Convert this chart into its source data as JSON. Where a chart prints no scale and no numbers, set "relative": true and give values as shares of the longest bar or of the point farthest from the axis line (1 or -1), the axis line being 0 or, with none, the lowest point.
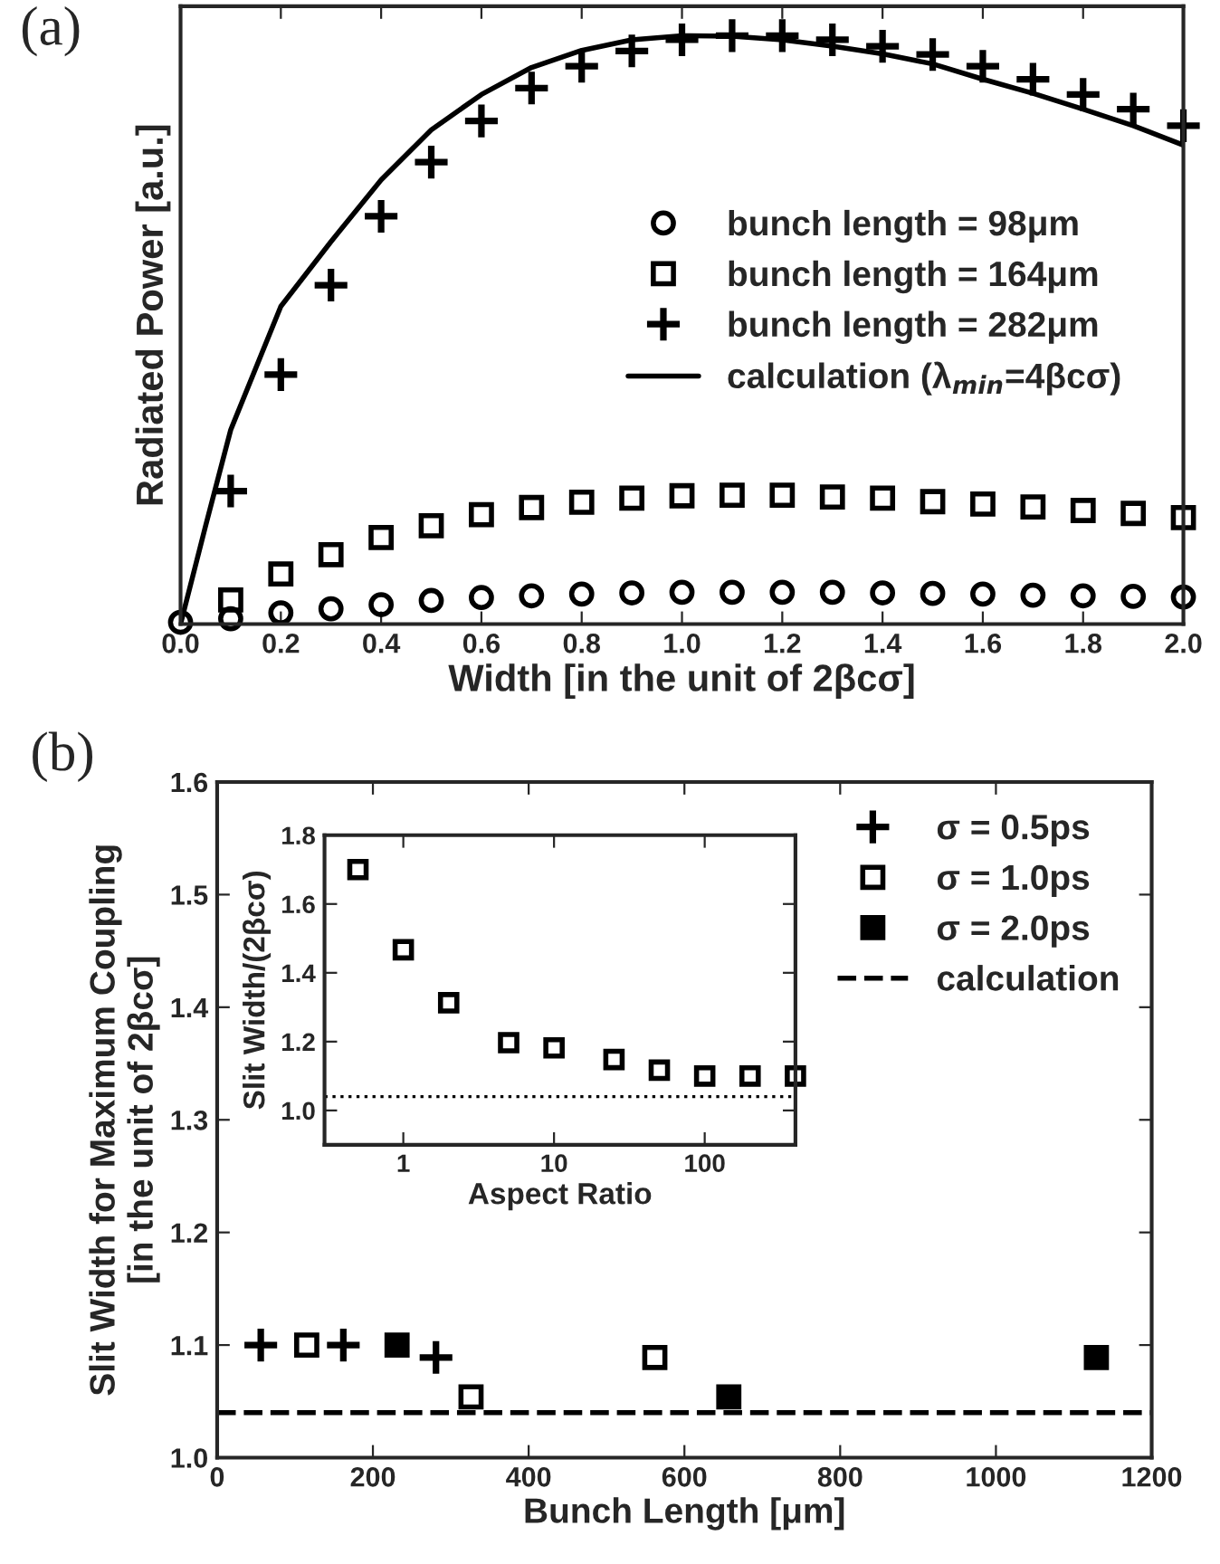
{
  "chart_data": [
    {
      "type": "scatter",
      "title": "(a)",
      "xlabel": "Width [in the unit of 2βcσ]",
      "ylabel": "Radiated Power [a.u.]",
      "relative": true,
      "xlim": [
        0.0,
        2.0
      ],
      "xticks": [
        {
          "value": 0,
          "label": "0.0"
        },
        0.2,
        0.4,
        0.6,
        0.8,
        {
          "value": 1,
          "label": "1.0"
        },
        1.2,
        1.4,
        1.6,
        1.8,
        {
          "value": 2,
          "label": "2.0"
        }
      ],
      "tick_labels": "x",
      "legend": "right",
      "grid": false,
      "series": [
        {
          "name": "bunch length = 98μm",
          "color": "#000000",
          "marker": "circle",
          "x": [
            0.0,
            0.1,
            0.2,
            0.3,
            0.4,
            0.5,
            0.6,
            0.7,
            0.8,
            0.9,
            1.0,
            1.1,
            1.2,
            1.3,
            1.4,
            1.5,
            1.6,
            1.7,
            1.8,
            1.9,
            2.0
          ],
          "values": [
            0.003,
            0.009,
            0.019,
            0.026,
            0.033,
            0.04,
            0.045,
            0.048,
            0.051,
            0.053,
            0.054,
            0.054,
            0.054,
            0.054,
            0.053,
            0.052,
            0.051,
            0.049,
            0.048,
            0.047,
            0.046
          ]
        },
        {
          "name": "bunch length = 164μm",
          "color": "#000000",
          "marker": "square",
          "x": [
            0.1,
            0.2,
            0.3,
            0.4,
            0.5,
            0.6,
            0.7,
            0.8,
            0.9,
            1.0,
            1.1,
            1.2,
            1.3,
            1.4,
            1.5,
            1.6,
            1.7,
            1.8,
            1.9,
            2.0
          ],
          "values": [
            0.041,
            0.085,
            0.118,
            0.147,
            0.167,
            0.186,
            0.198,
            0.207,
            0.214,
            0.218,
            0.219,
            0.219,
            0.216,
            0.214,
            0.208,
            0.204,
            0.199,
            0.193,
            0.188,
            0.181
          ]
        },
        {
          "name": "bunch length = 282μm",
          "color": "#000000",
          "marker": "cross",
          "x": [
            0.1,
            0.2,
            0.3,
            0.4,
            0.5,
            0.6,
            0.7,
            0.8,
            0.9,
            1.0,
            1.1,
            1.2,
            1.3,
            1.4,
            1.5,
            1.6,
            1.7,
            1.8,
            1.9,
            2.0
          ],
          "values": [
            0.226,
            0.424,
            0.576,
            0.693,
            0.785,
            0.855,
            0.911,
            0.948,
            0.974,
            0.993,
            1.0,
            1.0,
            0.993,
            0.982,
            0.968,
            0.948,
            0.926,
            0.9,
            0.875,
            0.847
          ]
        },
        {
          "name": "calculation (λ$_{min}$=4βcσ)",
          "type": "line",
          "color": "#000000",
          "line_style": "solid",
          "marker": "none",
          "x": [
            0.0,
            0.05,
            0.1,
            0.2,
            0.3,
            0.4,
            0.5,
            0.6,
            0.7,
            0.8,
            0.9,
            1.0,
            1.1,
            1.2,
            1.3,
            1.4,
            1.5,
            1.6,
            1.7,
            1.8,
            1.9,
            2.0
          ],
          "values": [
            0.0,
            0.167,
            0.33,
            0.54,
            0.65,
            0.755,
            0.84,
            0.9,
            0.946,
            0.975,
            0.993,
            1.0,
            0.999,
            0.993,
            0.982,
            0.969,
            0.952,
            0.926,
            0.902,
            0.875,
            0.847,
            0.814
          ]
        }
      ]
    },
    {
      "type": "scatter",
      "title": "(b)",
      "xlabel": "Bunch Length [μm]",
      "ylabel": "Slit Width for Maximum Coupling\n[in the unit of 2βcσ]",
      "xlim": [
        0,
        1200
      ],
      "xticks": [
        0,
        200,
        400,
        600,
        800,
        1000,
        1200
      ],
      "ylim": [
        1.0,
        1.6
      ],
      "yticks": [
        {
          "value": 1.0,
          "label": "1.0"
        },
        1.1,
        1.2,
        1.3,
        1.4,
        1.5,
        1.6
      ],
      "legend": "top right",
      "grid": false,
      "series": [
        {
          "name": "σ = 0.5ps",
          "color": "#000000",
          "marker": "cross",
          "x": [
            56,
            162,
            281
          ],
          "values": [
            1.1,
            1.1,
            1.089
          ]
        },
        {
          "name": "σ = 1.0ps",
          "color": "#000000",
          "marker": "square",
          "x": [
            115,
            326,
            562
          ],
          "values": [
            1.1,
            1.054,
            1.089
          ]
        },
        {
          "name": "σ = 2.0ps",
          "color": "#000000",
          "marker": "square",
          "x": [
            231,
            657,
            1129
          ],
          "values": [
            1.1,
            1.054,
            1.089
          ]
        },
        {
          "name": "calculation",
          "type": "line",
          "color": "#000000",
          "line_style": "dashed",
          "marker": "none",
          "x": [
            0,
            1200
          ],
          "values": [
            1.04,
            1.04
          ]
        }
      ]
    },
    {
      "type": "scatter",
      "xlabel": "Aspect Ratio",
      "ylabel": "Slit Width/(2βcσ)",
      "log": "x",
      "xlim": [
        0.3,
        400
      ],
      "xticks": [
        1,
        10,
        100
      ],
      "ylim": [
        0.9,
        1.8
      ],
      "yticks": [
        {
          "value": 1.0,
          "label": "1.0"
        },
        1.2,
        1.4,
        1.6,
        1.8
      ],
      "grid": false,
      "series": [
        {
          "color": "#000000",
          "marker": "square",
          "x": [
            0.5,
            1,
            2,
            5,
            10,
            25,
            50,
            100,
            200,
            400
          ],
          "values": [
            1.7,
            1.467,
            1.313,
            1.197,
            1.182,
            1.148,
            1.117,
            1.1,
            1.1,
            1.1
          ]
        }
      ],
      "ref_lines": [
        {
          "axis": "y",
          "value": 1.04,
          "line_style": "dotted",
          "color": "#000000"
        }
      ]
    }
  ]
}
